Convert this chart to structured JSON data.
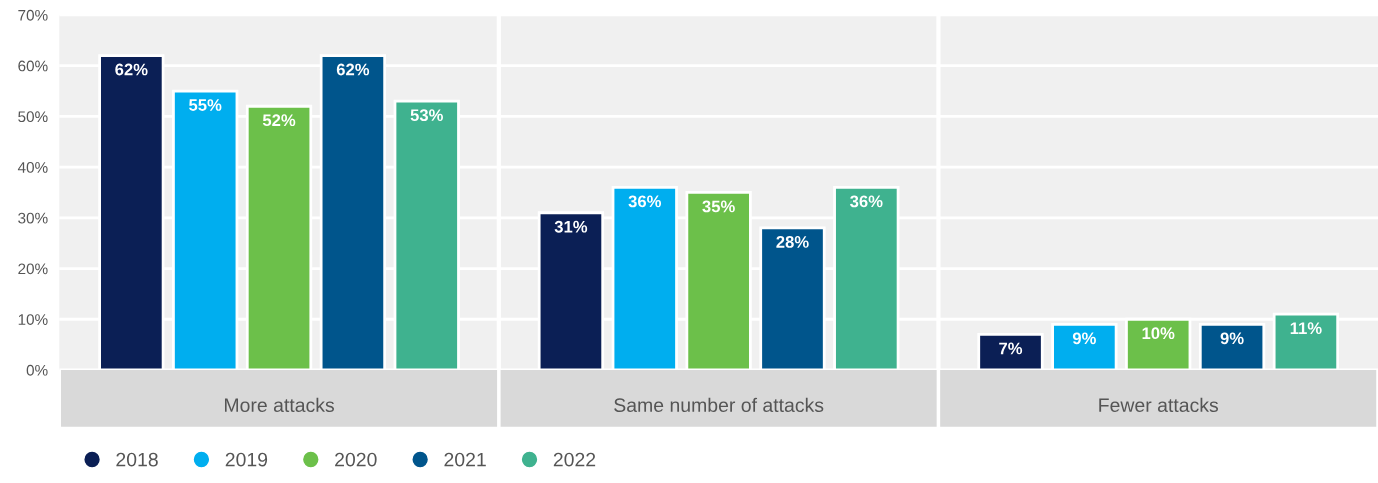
{
  "chart_data": {
    "type": "bar",
    "categories": [
      "More attacks",
      "Same number of attacks",
      "Fewer attacks"
    ],
    "series": [
      {
        "name": "2018",
        "color": "#0b1f55",
        "values": [
          62,
          31,
          7
        ],
        "value_labels": [
          "62%",
          "31%",
          "7%"
        ]
      },
      {
        "name": "2019",
        "color": "#00aeef",
        "values": [
          55,
          36,
          9
        ],
        "value_labels": [
          "55%",
          "36%",
          "9%"
        ]
      },
      {
        "name": "2020",
        "color": "#6cc04a",
        "values": [
          52,
          35,
          10
        ],
        "value_labels": [
          "52%",
          "35%",
          "10%"
        ]
      },
      {
        "name": "2021",
        "color": "#00558c",
        "values": [
          62,
          28,
          9
        ],
        "value_labels": [
          "62%",
          "28%",
          "9%"
        ]
      },
      {
        "name": "2022",
        "color": "#3fb28f",
        "values": [
          53,
          36,
          11
        ],
        "value_labels": [
          "53%",
          "36%",
          "11%"
        ]
      }
    ],
    "ylim": [
      0,
      70
    ],
    "yticks": [
      {
        "value": 0,
        "label": "0%"
      },
      {
        "value": 10,
        "label": "10%"
      },
      {
        "value": 20,
        "label": "20%"
      },
      {
        "value": 30,
        "label": "30%"
      },
      {
        "value": 40,
        "label": "40%"
      },
      {
        "value": 50,
        "label": "50%"
      },
      {
        "value": 60,
        "label": "60%"
      },
      {
        "value": 70,
        "label": "70%"
      }
    ],
    "grid": "y",
    "legend": "bottom left"
  }
}
